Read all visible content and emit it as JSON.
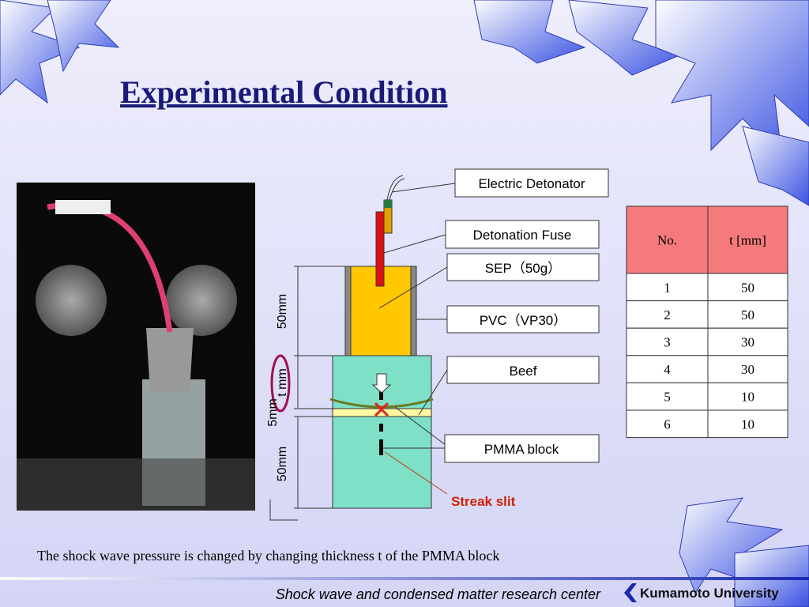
{
  "header": {
    "title": "Experimental Condition"
  },
  "diagram": {
    "labels": {
      "detonator": "Electric Detonator",
      "fuse": "Detonation Fuse",
      "sep": "SEP（50g）",
      "pvc": "PVC（VP30）",
      "beef": "Beef",
      "pmma": "PMMA block",
      "slit": "Streak slit"
    },
    "dimensions": {
      "top": "50mm",
      "t": "t mm",
      "beef": "5mm",
      "bottom": "50mm"
    }
  },
  "table": {
    "header": [
      "No.",
      "t [mm]"
    ],
    "rows": [
      [
        1,
        50
      ],
      [
        2,
        50
      ],
      [
        3,
        30
      ],
      [
        4,
        30
      ],
      [
        5,
        10
      ],
      [
        6,
        10
      ]
    ]
  },
  "caption": "The shock wave pressure is changed by changing thickness t of the PMMA block",
  "footer": {
    "center": "Shock wave and condensed matter research center",
    "university": "Kumamoto University"
  }
}
